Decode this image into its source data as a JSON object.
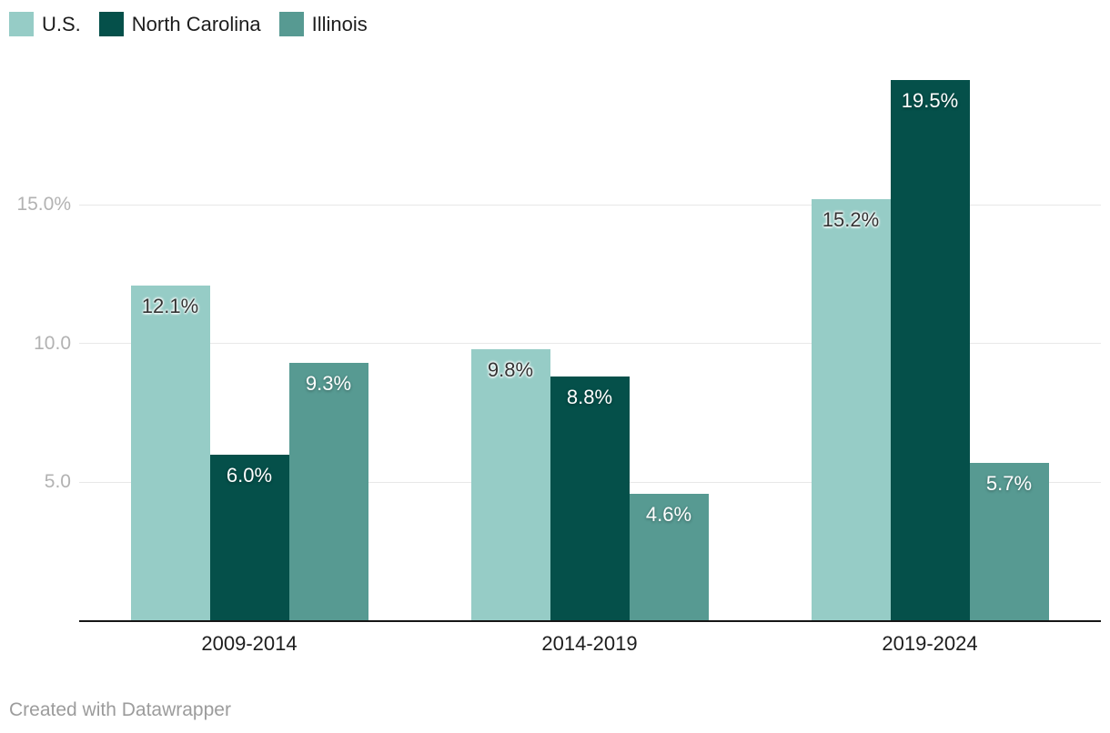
{
  "legend": {
    "items": [
      {
        "label": "U.S.",
        "color": "#96ccc6"
      },
      {
        "label": "North Carolina",
        "color": "#05504a"
      },
      {
        "label": "Illinois",
        "color": "#579a92"
      }
    ]
  },
  "chart_data": {
    "type": "bar",
    "categories": [
      "2009-2014",
      "2014-2019",
      "2019-2024"
    ],
    "series": [
      {
        "name": "U.S.",
        "color": "#96ccc6",
        "values": [
          12.1,
          9.8,
          15.2
        ],
        "labels": [
          "12.1%",
          "9.8%",
          "15.2%"
        ],
        "label_style": "dark"
      },
      {
        "name": "North Carolina",
        "color": "#05504a",
        "values": [
          6.0,
          8.8,
          19.5
        ],
        "labels": [
          "6.0%",
          "8.8%",
          "19.5%"
        ],
        "label_style": "light"
      },
      {
        "name": "Illinois",
        "color": "#579a92",
        "values": [
          9.3,
          4.6,
          5.7
        ],
        "labels": [
          "9.3%",
          "4.6%",
          "5.7%"
        ],
        "label_style": "light"
      }
    ],
    "y_ticks": [
      {
        "value": 5,
        "label": "5.0"
      },
      {
        "value": 10,
        "label": "10.0"
      },
      {
        "value": 15,
        "label": "15.0%"
      }
    ],
    "ylim": [
      0,
      19.7
    ],
    "grid": "horizontal",
    "legend_position": "top-left",
    "title": "",
    "xlabel": "",
    "ylabel": ""
  },
  "colors": {
    "gridline": "#e8e8e8",
    "baseline": "#161616",
    "ytick_text": "#b2b2b2",
    "axis_text": "#1d1d1d"
  },
  "footer": {
    "credit": "Created with Datawrapper"
  }
}
